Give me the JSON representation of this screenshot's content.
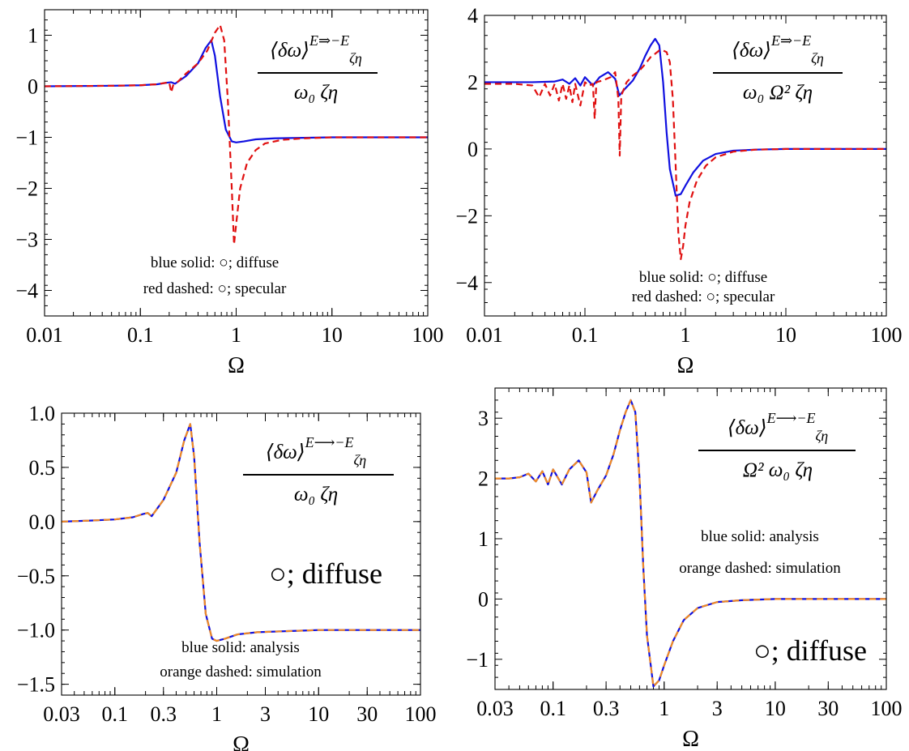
{
  "chart_data": [
    {
      "type": "line",
      "xscale": "log",
      "xlim": [
        0.01,
        100
      ],
      "ylim": [
        -4.5,
        1.5
      ],
      "xticks": [
        0.01,
        0.1,
        1,
        10,
        100
      ],
      "xtick_labels": [
        "0.01",
        "0.1",
        "1",
        "10",
        "100"
      ],
      "yticks": [
        1,
        0,
        -1,
        -2,
        -3,
        -4
      ],
      "ytick_labels": [
        "1",
        "0",
        "−1",
        "−2",
        "−3",
        "−4"
      ],
      "xlabel": "Ω",
      "ylabel": "",
      "legend_lines": [
        "blue solid: ○; diffuse",
        "red dashed: ○; specular"
      ],
      "equation": {
        "num_main": "⟨δω⟩",
        "num_sup": "E⇒−E",
        "num_sub": "ζη",
        "den": "ω₀ ζη"
      },
      "series": [
        {
          "style": "solid",
          "color": "#1010e0",
          "x": [
            0.01,
            0.05,
            0.1,
            0.15,
            0.19,
            0.21,
            0.23,
            0.3,
            0.4,
            0.48,
            0.55,
            0.6,
            0.68,
            0.78,
            0.9,
            1.0,
            1.2,
            1.6,
            2.5,
            5,
            10,
            100
          ],
          "y": [
            0.0,
            0.01,
            0.02,
            0.04,
            0.07,
            0.08,
            0.05,
            0.2,
            0.45,
            0.75,
            0.9,
            0.6,
            -0.2,
            -0.85,
            -1.08,
            -1.1,
            -1.08,
            -1.04,
            -1.02,
            -1.01,
            -1.0,
            -1.0
          ]
        },
        {
          "style": "dashed",
          "color": "#e01010",
          "x": [
            0.01,
            0.05,
            0.1,
            0.15,
            0.2,
            0.21,
            0.22,
            0.25,
            0.3,
            0.4,
            0.5,
            0.6,
            0.68,
            0.75,
            0.82,
            0.9,
            0.95,
            1.0,
            1.1,
            1.3,
            1.6,
            2.0,
            3.0,
            5,
            10,
            100
          ],
          "y": [
            0.0,
            0.01,
            0.02,
            0.04,
            0.08,
            -0.12,
            0.02,
            0.1,
            0.25,
            0.45,
            0.7,
            1.05,
            1.2,
            0.9,
            -0.3,
            -2.0,
            -3.1,
            -2.7,
            -2.0,
            -1.5,
            -1.25,
            -1.12,
            -1.05,
            -1.02,
            -1.0,
            -1.0
          ]
        }
      ]
    },
    {
      "type": "line",
      "xscale": "log",
      "xlim": [
        0.01,
        100
      ],
      "ylim": [
        -5,
        4
      ],
      "xticks": [
        0.01,
        0.1,
        1,
        10,
        100
      ],
      "xtick_labels": [
        "0.01",
        "0.1",
        "1",
        "10",
        "100"
      ],
      "yticks": [
        4,
        2,
        0,
        -2,
        -4
      ],
      "ytick_labels": [
        "4",
        "2",
        "0",
        "−2",
        "−4"
      ],
      "xlabel": "Ω",
      "ylabel": "",
      "legend_lines": [
        "blue solid: ○; diffuse",
        "red dashed: ○; specular"
      ],
      "equation": {
        "num_main": "⟨δω⟩",
        "num_sup": "E⇒−E",
        "num_sub": "ζη",
        "den": "ω₀ Ω² ζη"
      },
      "series": [
        {
          "style": "solid",
          "color": "#1010e0",
          "x": [
            0.01,
            0.03,
            0.05,
            0.06,
            0.07,
            0.08,
            0.09,
            0.1,
            0.12,
            0.14,
            0.17,
            0.2,
            0.22,
            0.25,
            0.3,
            0.35,
            0.4,
            0.45,
            0.5,
            0.55,
            0.6,
            0.65,
            0.7,
            0.8,
            0.9,
            1.0,
            1.2,
            1.5,
            2.0,
            3.0,
            5.0,
            10,
            100
          ],
          "y": [
            2.0,
            2.0,
            2.02,
            2.08,
            1.95,
            2.12,
            1.9,
            2.15,
            1.9,
            2.15,
            2.3,
            2.1,
            1.6,
            1.8,
            2.05,
            2.4,
            2.8,
            3.1,
            3.3,
            3.1,
            2.0,
            0.5,
            -0.6,
            -1.4,
            -1.35,
            -1.1,
            -0.7,
            -0.35,
            -0.15,
            -0.05,
            -0.02,
            0.0,
            0.0
          ]
        },
        {
          "style": "dashed",
          "color": "#e01010",
          "x": [
            0.01,
            0.02,
            0.03,
            0.035,
            0.04,
            0.045,
            0.05,
            0.055,
            0.06,
            0.065,
            0.07,
            0.075,
            0.08,
            0.09,
            0.1,
            0.11,
            0.12,
            0.125,
            0.13,
            0.15,
            0.18,
            0.2,
            0.215,
            0.222,
            0.23,
            0.26,
            0.3,
            0.35,
            0.4,
            0.45,
            0.5,
            0.55,
            0.6,
            0.65,
            0.7,
            0.75,
            0.8,
            0.85,
            0.9,
            0.95,
            1.0,
            1.1,
            1.3,
            1.6,
            2.0,
            3.0,
            5.0,
            10,
            100
          ],
          "y": [
            1.95,
            1.95,
            1.9,
            1.55,
            1.95,
            1.6,
            1.95,
            1.45,
            1.95,
            1.5,
            1.9,
            1.4,
            1.95,
            1.3,
            2.0,
            1.9,
            1.95,
            0.9,
            2.0,
            2.05,
            2.15,
            2.3,
            1.5,
            -0.2,
            1.6,
            2.0,
            2.2,
            2.35,
            2.55,
            2.75,
            2.85,
            2.95,
            2.95,
            2.9,
            2.6,
            1.5,
            -0.5,
            -2.5,
            -3.3,
            -2.9,
            -2.3,
            -1.6,
            -0.95,
            -0.5,
            -0.25,
            -0.08,
            -0.02,
            0.0,
            0.0
          ]
        }
      ]
    },
    {
      "type": "line",
      "xscale": "log",
      "xlim": [
        0.03,
        100
      ],
      "ylim": [
        -1.6,
        1.0
      ],
      "xticks": [
        0.03,
        0.1,
        0.3,
        1,
        3,
        10,
        30,
        100
      ],
      "xtick_labels": [
        "0.03",
        "0.1",
        "0.3",
        "1",
        "3",
        "10",
        "30",
        "100"
      ],
      "yticks": [
        1.0,
        0.5,
        0.0,
        -0.5,
        -1.0,
        -1.5
      ],
      "ytick_labels": [
        "1.0",
        "0.5",
        "0.0",
        "−0.5",
        "−1.0",
        "−1.5"
      ],
      "xlabel": "Ω",
      "ylabel": "",
      "legend_lines": [
        "blue solid: analysis",
        "orange dashed: simulation"
      ],
      "big_label": "○; diffuse",
      "equation": {
        "num_main": "⟨δω⟩",
        "num_sub": "ζη",
        "num_sup": "E⟶−E",
        "den": "ω₀ ζη"
      },
      "series": [
        {
          "style": "solid",
          "color": "#1010e0",
          "x": [
            0.03,
            0.06,
            0.1,
            0.15,
            0.19,
            0.21,
            0.23,
            0.3,
            0.4,
            0.48,
            0.55,
            0.6,
            0.68,
            0.78,
            0.9,
            1.0,
            1.2,
            1.6,
            2.5,
            5,
            10,
            100
          ],
          "y": [
            0.0,
            0.01,
            0.02,
            0.04,
            0.07,
            0.08,
            0.05,
            0.2,
            0.45,
            0.75,
            0.9,
            0.6,
            -0.2,
            -0.85,
            -1.08,
            -1.1,
            -1.08,
            -1.04,
            -1.02,
            -1.01,
            -1.0,
            -1.0
          ]
        },
        {
          "style": "dashed",
          "color": "#f08a24",
          "x": [
            0.03,
            0.06,
            0.1,
            0.15,
            0.19,
            0.21,
            0.23,
            0.3,
            0.4,
            0.48,
            0.55,
            0.6,
            0.68,
            0.78,
            0.9,
            1.0,
            1.2,
            1.6,
            2.5,
            5,
            10,
            100
          ],
          "y": [
            0.0,
            0.01,
            0.02,
            0.04,
            0.07,
            0.08,
            0.05,
            0.2,
            0.45,
            0.75,
            0.9,
            0.6,
            -0.2,
            -0.85,
            -1.08,
            -1.1,
            -1.08,
            -1.04,
            -1.02,
            -1.01,
            -1.0,
            -1.0
          ]
        }
      ]
    },
    {
      "type": "line",
      "xscale": "log",
      "xlim": [
        0.03,
        100
      ],
      "ylim": [
        -1.5,
        3.5
      ],
      "xticks": [
        0.03,
        0.1,
        0.3,
        1,
        3,
        10,
        30,
        100
      ],
      "xtick_labels": [
        "0.03",
        "0.1",
        "0.3",
        "1",
        "3",
        "10",
        "30",
        "100"
      ],
      "yticks": [
        3,
        2,
        1,
        0,
        -1
      ],
      "ytick_labels": [
        "3",
        "2",
        "1",
        "0",
        "−1"
      ],
      "xlabel": "Ω",
      "ylabel": "",
      "legend_lines": [
        "blue solid: analysis",
        "orange dashed: simulation"
      ],
      "big_label": "○; diffuse",
      "equation": {
        "num_main": "⟨δω⟩",
        "num_sub": "ζη",
        "num_sup": "E⟶−E",
        "den": "Ω² ω₀ ζη"
      },
      "series": [
        {
          "style": "solid",
          "color": "#1010e0",
          "x": [
            0.03,
            0.04,
            0.05,
            0.06,
            0.07,
            0.08,
            0.09,
            0.1,
            0.12,
            0.14,
            0.17,
            0.2,
            0.22,
            0.25,
            0.3,
            0.35,
            0.4,
            0.45,
            0.5,
            0.55,
            0.6,
            0.65,
            0.7,
            0.8,
            0.9,
            1.0,
            1.2,
            1.5,
            2.0,
            3.0,
            5.0,
            10,
            100
          ],
          "y": [
            2.0,
            2.0,
            2.02,
            2.08,
            1.95,
            2.12,
            1.9,
            2.15,
            1.9,
            2.15,
            2.3,
            2.1,
            1.6,
            1.8,
            2.05,
            2.4,
            2.8,
            3.1,
            3.3,
            3.1,
            2.0,
            0.5,
            -0.6,
            -1.45,
            -1.35,
            -1.1,
            -0.7,
            -0.35,
            -0.15,
            -0.05,
            -0.02,
            0.0,
            0.0
          ]
        },
        {
          "style": "dashed",
          "color": "#f08a24",
          "x": [
            0.03,
            0.04,
            0.05,
            0.06,
            0.07,
            0.08,
            0.09,
            0.1,
            0.12,
            0.14,
            0.17,
            0.2,
            0.22,
            0.25,
            0.3,
            0.35,
            0.4,
            0.45,
            0.5,
            0.55,
            0.6,
            0.65,
            0.7,
            0.8,
            0.9,
            1.0,
            1.2,
            1.5,
            2.0,
            3.0,
            5.0,
            10,
            100
          ],
          "y": [
            2.0,
            2.0,
            2.02,
            2.08,
            1.95,
            2.12,
            1.9,
            2.15,
            1.9,
            2.15,
            2.3,
            2.1,
            1.6,
            1.8,
            2.05,
            2.4,
            2.8,
            3.1,
            3.3,
            3.1,
            2.0,
            0.5,
            -0.6,
            -1.45,
            -1.35,
            -1.1,
            -0.7,
            -0.35,
            -0.15,
            -0.05,
            -0.02,
            0.0,
            0.0
          ]
        }
      ]
    }
  ]
}
